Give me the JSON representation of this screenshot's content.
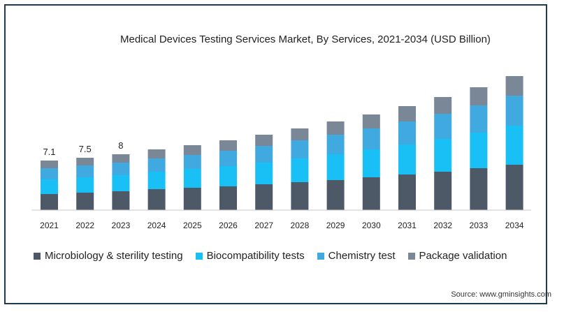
{
  "chart_data": {
    "type": "bar",
    "stacked": true,
    "title": "Medical Devices Testing Services Market, By Services, 2021-2034 (USD Billion)",
    "xlabel": "",
    "ylabel": "",
    "categories": [
      "2021",
      "2022",
      "2023",
      "2024",
      "2025",
      "2026",
      "2027",
      "2028",
      "2029",
      "2030",
      "2031",
      "2032",
      "2033",
      "2034"
    ],
    "series": [
      {
        "name": "Microbiology & sterility testing",
        "color": "#4d5966",
        "values": [
          2.3,
          2.5,
          2.7,
          3.0,
          3.2,
          3.4,
          3.7,
          4.0,
          4.3,
          4.7,
          5.1,
          5.5,
          6.0,
          6.5
        ]
      },
      {
        "name": "Biocompatibility tests",
        "color": "#19c0f5",
        "values": [
          2.1,
          2.2,
          2.3,
          2.5,
          2.7,
          2.9,
          3.1,
          3.4,
          3.7,
          4.0,
          4.3,
          4.7,
          5.1,
          5.6
        ]
      },
      {
        "name": "Chemistry test",
        "color": "#3fa9e0",
        "values": [
          1.6,
          1.7,
          1.8,
          1.9,
          2.0,
          2.2,
          2.4,
          2.6,
          2.8,
          3.0,
          3.3,
          3.6,
          3.9,
          4.3
        ]
      },
      {
        "name": "Package validation",
        "color": "#7a8796",
        "values": [
          1.1,
          1.1,
          1.2,
          1.3,
          1.4,
          1.5,
          1.6,
          1.7,
          1.9,
          2.0,
          2.2,
          2.4,
          2.6,
          2.8
        ]
      }
    ],
    "data_labels": {
      "2021": "7.1",
      "2022": "7.5",
      "2023": "8"
    },
    "ylim": [
      0,
      19.5
    ],
    "grid": false,
    "legend": "bottom"
  },
  "source": "Source: www.gminsights.com"
}
